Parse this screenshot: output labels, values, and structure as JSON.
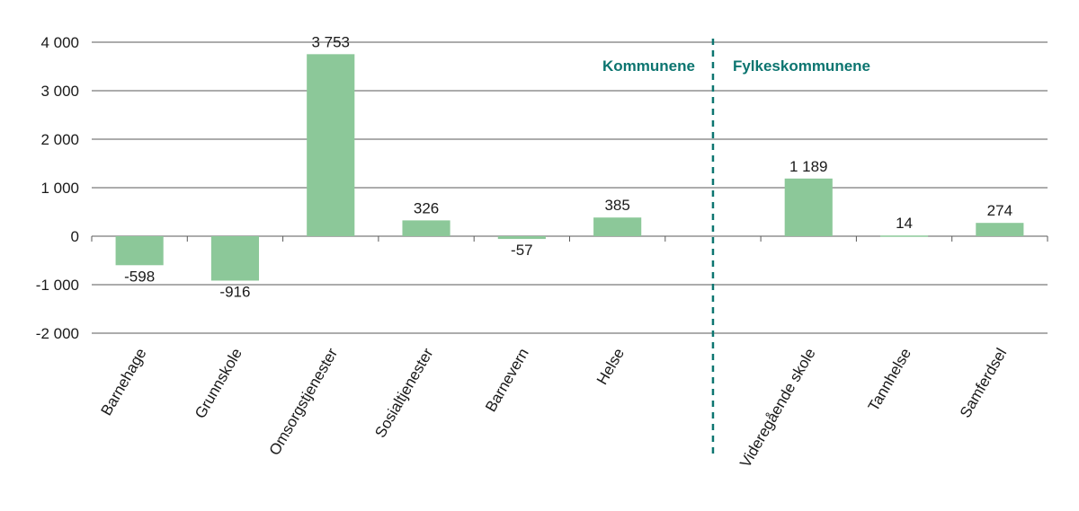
{
  "chart_data": {
    "type": "bar",
    "categories": [
      "Barnehage",
      "Grunnskole",
      "Omsorgstjenester",
      "Sosialtjenester",
      "Barnevern",
      "Helse",
      "",
      "Videregående skole",
      "Tannhelse",
      "Samferdsel"
    ],
    "values": [
      -598,
      -916,
      3753,
      326,
      -57,
      385,
      null,
      1189,
      14,
      274
    ],
    "value_labels": [
      "-598",
      "-916",
      "3 753",
      "326",
      "-57",
      "385",
      "",
      "1 189",
      "14",
      "274"
    ],
    "ylim": [
      -2000,
      4000
    ],
    "yticks": [
      4000,
      3000,
      2000,
      1000,
      0,
      -1000,
      -2000
    ],
    "ytick_labels": [
      "4 000",
      "3 000",
      "2 000",
      "1 000",
      "0",
      "-1 000",
      "-2 000"
    ],
    "grid": true,
    "group_labels": [
      "Kommunene",
      "Fylkeskommunene"
    ],
    "colors": {
      "bar": "#8cc899",
      "grid": "#5a5a5a",
      "divider": "#0c7570",
      "group_text": "#0c7570"
    }
  }
}
